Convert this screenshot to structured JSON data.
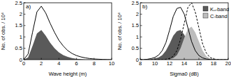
{
  "chart_data": [
    {
      "type": "area",
      "title": "a)",
      "xlabel": "Wave height (m)",
      "ylabel": "No. of obs. / 10⁴",
      "x": [
        0,
        0.5,
        1,
        1.5,
        2,
        2.5,
        3,
        3.5,
        4,
        4.5,
        5,
        5.5,
        6,
        6.5,
        7,
        7.5,
        8,
        8.5,
        9,
        9.5,
        10
      ],
      "xlim": [
        0,
        10
      ],
      "xticks": [
        0,
        2,
        4,
        6,
        8,
        10
      ],
      "ylim": [
        0,
        2.5
      ],
      "yticks": [
        0,
        0.5,
        1,
        1.5,
        2,
        2.5
      ],
      "series": [
        {
          "type": "area",
          "color": "#5a5a5a",
          "values": [
            0,
            0.1,
            0.6,
            1.15,
            1.3,
            1.05,
            0.75,
            0.5,
            0.32,
            0.2,
            0.12,
            0.07,
            0.04,
            0.02,
            0.01,
            0.005,
            0,
            0,
            0,
            0,
            0
          ]
        },
        {
          "type": "line",
          "color": "#000000",
          "line_style": "solid",
          "values": [
            0,
            0.25,
            1.2,
            2.1,
            2.35,
            2.05,
            1.6,
            1.2,
            0.85,
            0.6,
            0.4,
            0.27,
            0.18,
            0.12,
            0.08,
            0.05,
            0.03,
            0.02,
            0.01,
            0.005,
            0
          ]
        }
      ]
    },
    {
      "type": "area",
      "title": "b)",
      "xlabel": "Sigma0 (dB)",
      "ylabel": "No. of obs. / 10⁴",
      "legend": "top right",
      "x": [
        8,
        8.5,
        9,
        9.5,
        10,
        10.5,
        11,
        11.5,
        12,
        12.5,
        13,
        13.5,
        14,
        14.5,
        15,
        15.5,
        16,
        16.5,
        17,
        17.5,
        18,
        18.5,
        19,
        19.5,
        20
      ],
      "xlim": [
        8,
        20
      ],
      "xticks": [
        8,
        10,
        12,
        14,
        16,
        18,
        20
      ],
      "ylim": [
        0,
        2.5
      ],
      "yticks": [
        0,
        0.5,
        1,
        1.5,
        2,
        2.5
      ],
      "series": [
        {
          "name": "Kᵤ-band",
          "type": "area",
          "color": "#5a5a5a",
          "values": [
            0,
            0,
            0.01,
            0.02,
            0.05,
            0.1,
            0.2,
            0.4,
            0.7,
            1.05,
            1.25,
            1.3,
            1.1,
            0.75,
            0.4,
            0.2,
            0.08,
            0.03,
            0.01,
            0,
            0,
            0,
            0,
            0,
            0
          ]
        },
        {
          "name": "C-band",
          "type": "area",
          "color": "#bdbdbd",
          "values": [
            0,
            0,
            0,
            0,
            0,
            0,
            0,
            0.01,
            0.02,
            0.07,
            0.2,
            0.5,
            0.95,
            1.35,
            1.45,
            1.2,
            0.8,
            0.4,
            0.15,
            0.05,
            0.015,
            0,
            0,
            0,
            0
          ]
        },
        {
          "type": "line",
          "color": "#000000",
          "line_style": "solid",
          "values": [
            0,
            0,
            0.02,
            0.05,
            0.1,
            0.2,
            0.4,
            0.75,
            1.3,
            1.9,
            2.25,
            2.3,
            2.0,
            1.4,
            0.8,
            0.4,
            0.18,
            0.08,
            0.03,
            0.01,
            0,
            0,
            0,
            0,
            0
          ]
        },
        {
          "type": "line",
          "color": "#000000",
          "line_style": "dashed",
          "values": [
            0,
            0,
            0,
            0,
            0,
            0,
            0,
            0.02,
            0.05,
            0.15,
            0.4,
            0.9,
            1.6,
            2.3,
            2.5,
            2.1,
            1.4,
            0.7,
            0.3,
            0.1,
            0.03,
            0.01,
            0,
            0,
            0
          ]
        }
      ]
    }
  ]
}
